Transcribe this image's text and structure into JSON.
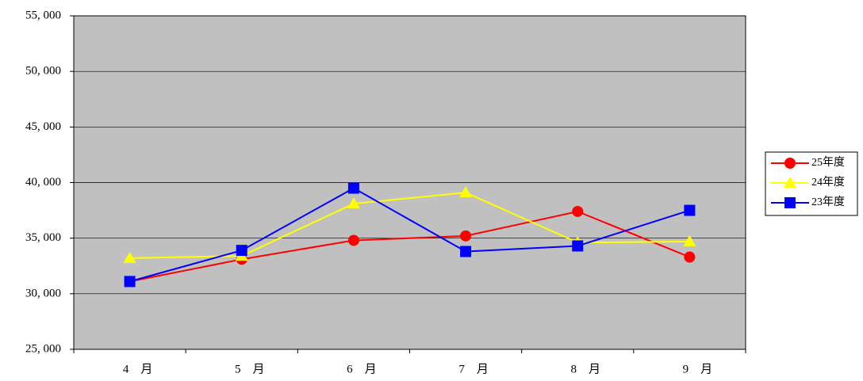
{
  "chart_data": {
    "type": "line",
    "categories": [
      "4　月",
      "5　月",
      "6　月",
      "7　月",
      "8　月",
      "9　月"
    ],
    "series": [
      {
        "name": "25年度",
        "color": "#ff0000",
        "marker": "circle",
        "values": [
          31100,
          33100,
          34800,
          35200,
          37400,
          33300
        ]
      },
      {
        "name": "24年度",
        "color": "#ffff00",
        "marker": "triangle",
        "values": [
          33200,
          33400,
          38100,
          39100,
          34600,
          34700
        ]
      },
      {
        "name": "23年度",
        "color": "#0000ff",
        "marker": "square",
        "values": [
          31100,
          33900,
          39500,
          33800,
          34300,
          37500
        ]
      }
    ],
    "ylim": [
      25000,
      55000
    ],
    "yticks": [
      {
        "value": 25000,
        "label": "25, 000"
      },
      {
        "value": 30000,
        "label": "30, 000"
      },
      {
        "value": 35000,
        "label": "35, 000"
      },
      {
        "value": 40000,
        "label": "40, 000"
      },
      {
        "value": 45000,
        "label": "45, 000"
      },
      {
        "value": 50000,
        "label": "50, 000"
      },
      {
        "value": 55000,
        "label": "55, 000"
      }
    ],
    "grid": true,
    "plot_background": "#c0c0c0",
    "legend": "right"
  }
}
